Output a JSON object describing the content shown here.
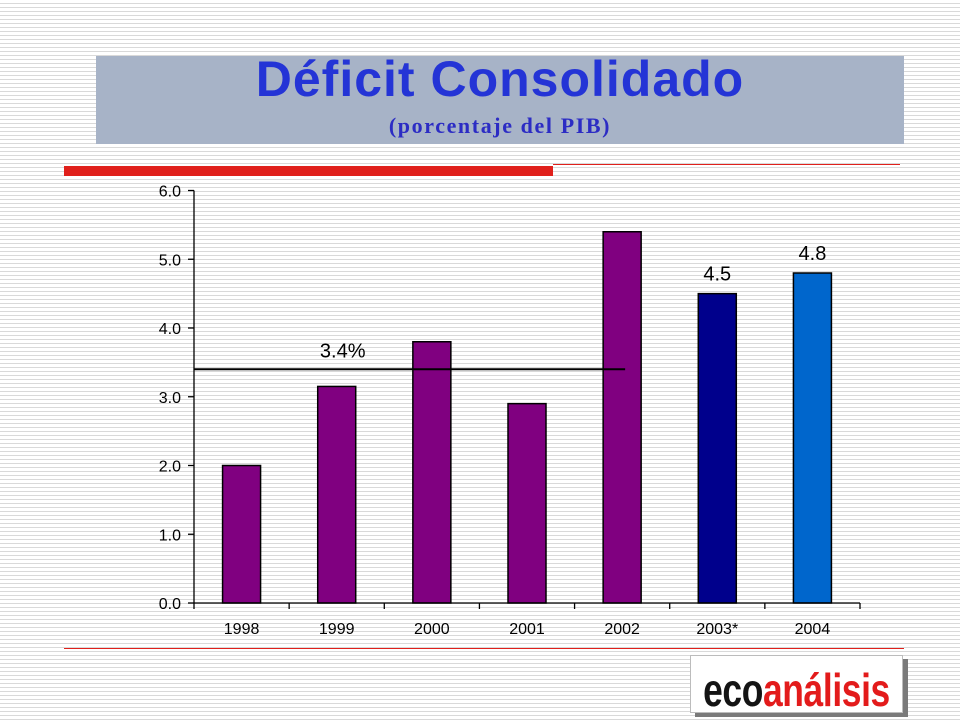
{
  "slide": {
    "title": "Déficit Consolidado",
    "subtitle": "(porcentaje del PIB)"
  },
  "logo": {
    "part1": "eco",
    "part2": "análisis"
  },
  "colors": {
    "title_text": "#2434D6",
    "subtitle_text": "#2C2CC4",
    "title_box": "#A7B3C7",
    "accent_red": "#E0201B",
    "logo_dark": "#141414",
    "logo_red": "#E31B1B"
  },
  "chart_data": {
    "type": "bar",
    "categories": [
      "1998",
      "1999",
      "2000",
      "2001",
      "2002",
      "2003*",
      "2004"
    ],
    "values": [
      2.0,
      3.15,
      3.8,
      2.9,
      5.4,
      4.5,
      4.8
    ],
    "bar_colors": [
      "#800080",
      "#800080",
      "#800080",
      "#800080",
      "#800080",
      "#00008C",
      "#0066CC"
    ],
    "ylim": [
      0,
      6
    ],
    "yticks": [
      "0.0",
      "1.0",
      "2.0",
      "3.0",
      "4.0",
      "5.0",
      "6.0"
    ],
    "data_labels": [
      {
        "category": "2003*",
        "text": "4.5"
      },
      {
        "category": "2004",
        "text": "4.8"
      }
    ],
    "reference_line": {
      "value": 3.4,
      "label": "3.4%"
    },
    "grid": false,
    "legend": "none"
  }
}
